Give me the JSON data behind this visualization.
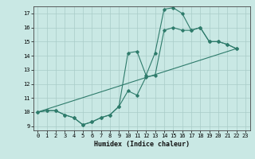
{
  "xlabel": "Humidex (Indice chaleur)",
  "xlim": [
    -0.5,
    23.5
  ],
  "ylim": [
    8.7,
    17.5
  ],
  "yticks": [
    9,
    10,
    11,
    12,
    13,
    14,
    15,
    16,
    17
  ],
  "xticks": [
    0,
    1,
    2,
    3,
    4,
    5,
    6,
    7,
    8,
    9,
    10,
    11,
    12,
    13,
    14,
    15,
    16,
    17,
    18,
    19,
    20,
    21,
    22,
    23
  ],
  "bg_color": "#c9e8e4",
  "line_color": "#2e7b6b",
  "grid_color": "#a8ccc8",
  "line1": [
    [
      0,
      10.0
    ],
    [
      1,
      10.1
    ],
    [
      2,
      10.1
    ],
    [
      3,
      9.8
    ],
    [
      4,
      9.6
    ],
    [
      5,
      9.1
    ],
    [
      6,
      9.3
    ],
    [
      7,
      9.6
    ],
    [
      8,
      9.8
    ],
    [
      9,
      10.4
    ],
    [
      10,
      14.2
    ],
    [
      11,
      14.3
    ],
    [
      12,
      12.6
    ],
    [
      13,
      14.2
    ],
    [
      14,
      17.3
    ],
    [
      15,
      17.4
    ],
    [
      16,
      17.0
    ],
    [
      17,
      15.8
    ],
    [
      18,
      16.0
    ],
    [
      19,
      15.0
    ],
    [
      20,
      15.0
    ],
    [
      21,
      14.8
    ],
    [
      22,
      14.5
    ]
  ],
  "line2": [
    [
      0,
      10.0
    ],
    [
      1,
      10.1
    ],
    [
      2,
      10.1
    ],
    [
      3,
      9.8
    ],
    [
      4,
      9.6
    ],
    [
      5,
      9.1
    ],
    [
      6,
      9.3
    ],
    [
      7,
      9.6
    ],
    [
      8,
      9.8
    ],
    [
      9,
      10.4
    ],
    [
      10,
      11.5
    ],
    [
      11,
      11.2
    ],
    [
      12,
      12.5
    ],
    [
      13,
      12.6
    ],
    [
      14,
      15.8
    ],
    [
      15,
      16.0
    ],
    [
      16,
      15.8
    ],
    [
      17,
      15.8
    ],
    [
      18,
      16.0
    ],
    [
      19,
      15.0
    ],
    [
      20,
      15.0
    ],
    [
      21,
      14.8
    ],
    [
      22,
      14.5
    ]
  ],
  "line3": [
    [
      0,
      10.0
    ],
    [
      22,
      14.5
    ]
  ]
}
